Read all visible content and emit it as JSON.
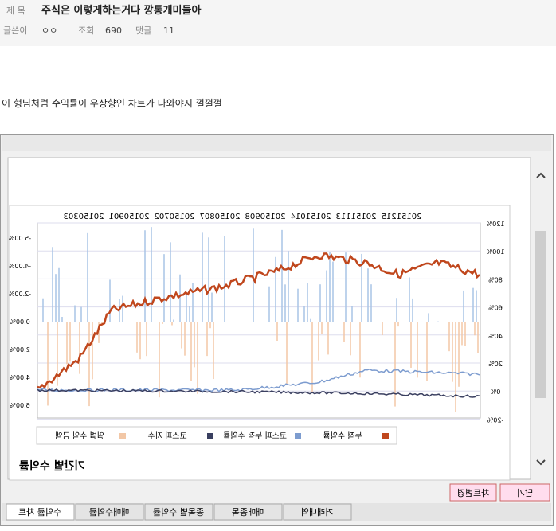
{
  "header": {
    "title_label": "제 목",
    "title": "주식은 이렇게하는거다 깡통개미들아",
    "author_label": "글쓴이",
    "author": "ㅇㅇ",
    "views_label": "조회",
    "views": "690",
    "comments_label": "댓글",
    "comments": "11"
  },
  "body": {
    "text": "이 형님처럼 수익률이 우상향인 차트가 나와야지 껄껄껄"
  },
  "chart_image": {
    "dates": [
      "20150303",
      "20150901",
      "20150702",
      "20150807",
      "20150908",
      "20151014",
      "20151113",
      "20151215"
    ],
    "left_labels": [
      "-5.00%",
      "-4.00%",
      "-2.00%",
      "0.00%",
      "2.00%",
      "4.00%",
      "6.00%"
    ],
    "right_labels": [
      "120%",
      "100%",
      "80%",
      "60%",
      "40%",
      "20%",
      "0%",
      "-20%"
    ],
    "legend": [
      "일별 수익 금액",
      "코스피 지수",
      "코스피 누적 수익률",
      "누적 수익률"
    ],
    "caption": "기간별 수익률"
  },
  "buttons": [
    "차트변경",
    "닫기"
  ],
  "tabs": [
    "수익률 차트",
    "매매수익률",
    "종목별 수익률",
    "매매종목",
    "거래내역"
  ]
}
